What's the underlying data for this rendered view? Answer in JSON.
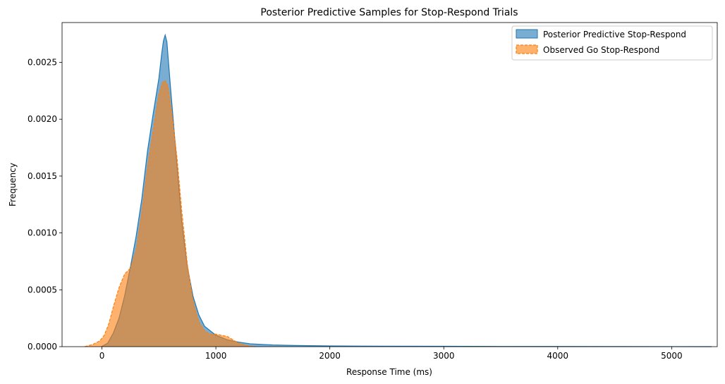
{
  "chart_data": {
    "type": "area",
    "title": "Posterior Predictive Samples for Stop-Respond Trials",
    "xlabel": "Response Time (ms)",
    "ylabel": "Frequency",
    "xlim": [
      -350,
      5400
    ],
    "ylim": [
      0,
      0.00285
    ],
    "xticks": [
      0,
      1000,
      2000,
      3000,
      4000,
      5000
    ],
    "yticks": [
      0.0,
      0.0005,
      0.001,
      0.0015,
      0.002,
      0.0025
    ],
    "ytick_labels": [
      "0.0000",
      "0.0005",
      "0.0010",
      "0.0015",
      "0.0020",
      "0.0025"
    ],
    "legend_position": "top-right",
    "grid": false,
    "series": [
      {
        "name": "Posterior Predictive Stop-Respond",
        "color": "#1f77b4",
        "fill_opacity": 0.6,
        "line_style": "solid",
        "x": [
          -5,
          50,
          100,
          150,
          200,
          250,
          300,
          350,
          400,
          450,
          500,
          525,
          540,
          555,
          570,
          600,
          650,
          700,
          750,
          800,
          850,
          900,
          1000,
          1100,
          1200,
          1300,
          1500,
          1700,
          2000,
          2500,
          3000,
          3500,
          4000,
          4500,
          5000,
          5350
        ],
        "y": [
          0.0,
          3e-05,
          0.00012,
          0.00025,
          0.00045,
          0.0007,
          0.00097,
          0.0013,
          0.00172,
          0.00205,
          0.00236,
          0.00258,
          0.00269,
          0.00274,
          0.00268,
          0.0023,
          0.0017,
          0.0011,
          0.0007,
          0.00044,
          0.00028,
          0.00018,
          0.0001,
          6e-05,
          4e-05,
          2.5e-05,
          1.5e-05,
          1e-05,
          6e-06,
          4e-06,
          3e-06,
          2e-06,
          1.5e-06,
          1e-06,
          5e-07,
          0.0
        ]
      },
      {
        "name": "Observed Go Stop-Respond",
        "color": "#ff7f0e",
        "fill_opacity": 0.6,
        "line_style": "dashed",
        "x": [
          -150,
          -80,
          -20,
          20,
          60,
          100,
          150,
          200,
          250,
          300,
          350,
          400,
          450,
          500,
          530,
          555,
          580,
          620,
          660,
          700,
          750,
          800,
          850,
          900,
          950,
          1000,
          1050,
          1100,
          1150,
          1200,
          1250,
          1300,
          1350
        ],
        "y": [
          0.0,
          2e-05,
          5e-05,
          0.0001,
          0.0002,
          0.00035,
          0.00052,
          0.00064,
          0.00069,
          0.00085,
          0.00118,
          0.00158,
          0.0019,
          0.00222,
          0.00232,
          0.00234,
          0.00229,
          0.002,
          0.00165,
          0.0012,
          0.00072,
          0.0004,
          0.00022,
          0.00014,
          0.00011,
          0.00011,
          0.0001,
          9e-05,
          6e-05,
          3e-05,
          1.5e-05,
          5e-06,
          0.0
        ]
      }
    ]
  }
}
